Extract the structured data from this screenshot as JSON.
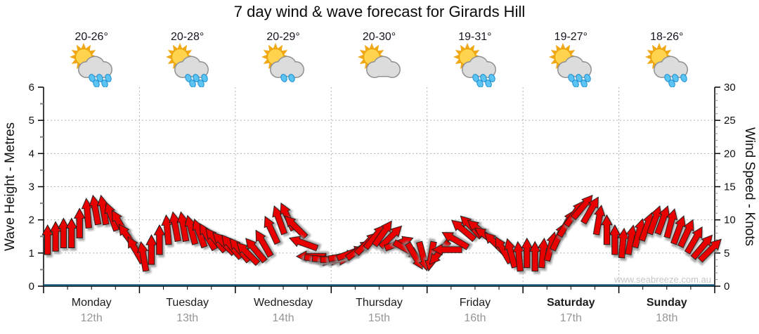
{
  "page": {
    "background": "#ffffff"
  },
  "chart_data": {
    "type": "wind-arrow-forecast",
    "title": "7 day wind & wave forecast for Girards Hill",
    "watermark": "www.seabreeze.com.au",
    "days": [
      {
        "name": "Monday",
        "date": "12th",
        "temp": "20-26°",
        "icon": "sun-cloud-showers",
        "drops": 5,
        "bold": false
      },
      {
        "name": "Tuesday",
        "date": "13th",
        "temp": "20-28°",
        "icon": "sun-cloud-showers",
        "drops": 5,
        "bold": false
      },
      {
        "name": "Wednesday",
        "date": "14th",
        "temp": "20-29°",
        "icon": "sun-cloud-light-showers",
        "drops": 2,
        "bold": false
      },
      {
        "name": "Thursday",
        "date": "15th",
        "temp": "20-30°",
        "icon": "sun-cloud",
        "drops": 0,
        "bold": false
      },
      {
        "name": "Friday",
        "date": "16th",
        "temp": "19-31°",
        "icon": "sun-cloud-showers",
        "drops": 5,
        "bold": false
      },
      {
        "name": "Saturday",
        "date": "17th",
        "temp": "19-27°",
        "icon": "sun-cloud-showers",
        "drops": 5,
        "bold": true
      },
      {
        "name": "Sunday",
        "date": "18th",
        "temp": "18-26°",
        "icon": "sun-cloud-showers",
        "drops": 4,
        "bold": true
      }
    ],
    "axes": {
      "left": {
        "label": "Wave Height - Metres",
        "min": 0,
        "max": 6,
        "ticks": [
          0,
          1,
          2,
          3,
          4,
          5,
          6
        ],
        "minor_step": 0.5
      },
      "right": {
        "label": "Wind Speed - Knots",
        "min": 0,
        "max": 30,
        "ticks": [
          0,
          5,
          10,
          15,
          20,
          25,
          30
        ],
        "minor_step": 1
      }
    },
    "series": [
      {
        "name": "wind-speed",
        "type": "arrows",
        "unit": "knots",
        "color": "#e80000",
        "samples_per_day": 12,
        "speeds_knots": [
          7,
          7.5,
          8,
          8,
          9.5,
          11,
          11.5,
          11.5,
          10.5,
          9.5,
          7.5,
          5.5,
          4.5,
          5.5,
          7,
          8.5,
          9,
          9,
          8.5,
          8,
          7.5,
          7,
          6.5,
          6,
          5.5,
          5,
          5.5,
          6.5,
          8.5,
          10,
          10.5,
          9,
          6.5,
          4.5,
          4,
          4,
          4,
          4.5,
          5,
          5.5,
          6.5,
          7.5,
          8,
          7.5,
          6.5,
          5.5,
          4.5,
          4.5,
          4.5,
          5,
          5.5,
          7,
          8.5,
          9,
          8.5,
          7.5,
          6.5,
          5.5,
          5,
          4.5,
          5,
          4.5,
          5,
          6,
          7.5,
          9.5,
          11,
          12,
          11.5,
          10,
          8.5,
          7,
          6.5,
          7,
          8,
          9,
          10,
          10,
          9.5,
          8.5,
          8,
          7,
          6,
          5.5
        ],
        "directions_deg": [
          0,
          0,
          0,
          0,
          0,
          -5,
          -10,
          -10,
          -20,
          -30,
          -35,
          -30,
          -10,
          0,
          0,
          -5,
          -10,
          -10,
          -15,
          -20,
          -30,
          -40,
          -45,
          -40,
          -40,
          -45,
          -40,
          -30,
          -25,
          -20,
          -25,
          -45,
          -70,
          -90,
          100,
          95,
          90,
          80,
          70,
          55,
          45,
          40,
          35,
          45,
          70,
          120,
          150,
          165,
          -170,
          -140,
          -90,
          -60,
          -50,
          -45,
          -50,
          -55,
          -45,
          -30,
          -15,
          -5,
          0,
          0,
          5,
          15,
          25,
          30,
          35,
          40,
          30,
          10,
          0,
          0,
          5,
          10,
          15,
          20,
          20,
          20,
          15,
          20,
          25,
          30,
          40,
          45
        ]
      },
      {
        "name": "wave-height",
        "type": "line",
        "unit": "metres",
        "color": "#155a7e",
        "constant_value": 0
      }
    ],
    "style": {
      "grid_color": "#b3b3b3",
      "axis_color": "#000000",
      "minor_tick_color": "#828282",
      "arrow_outline": "#1a1a1a",
      "sun": "#FFD34D",
      "sun_ray": "#F0A818",
      "cloud": "#dcdcdc",
      "cloud_edge": "#909090",
      "drop": "#5bc4f2",
      "drop_edge": "#1f8fd0"
    }
  }
}
